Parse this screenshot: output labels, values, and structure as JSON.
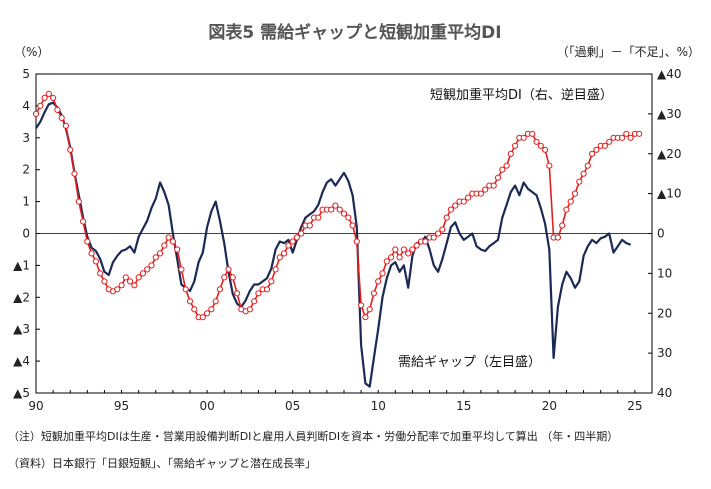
{
  "chart_data": {
    "type": "line",
    "title": "図表5 需給ギャップと短観加重平均DI",
    "left_unit": "（%）",
    "right_unit": "（「過剰」－「不足」、%）",
    "x_tick_labels": [
      "90",
      "95",
      "00",
      "05",
      "10",
      "15",
      "20",
      "25"
    ],
    "x_tick_years": [
      1990,
      1995,
      2000,
      2005,
      2010,
      2015,
      2020,
      2025
    ],
    "x_range": [
      1990,
      2026
    ],
    "left_axis": {
      "ylim": [
        -5,
        5
      ],
      "ticks": [
        5,
        4,
        3,
        2,
        1,
        0,
        -1,
        -2,
        -3,
        -4,
        -5
      ],
      "tick_labels": [
        "5",
        "4",
        "3",
        "2",
        "1",
        "0",
        "▲1",
        "▲2",
        "▲3",
        "▲4",
        "▲5"
      ]
    },
    "right_axis": {
      "ylim": [
        40,
        -40
      ],
      "inverted": true,
      "ticks": [
        -40,
        -30,
        -20,
        -10,
        0,
        10,
        20,
        30,
        40
      ],
      "tick_labels": [
        "▲40",
        "▲30",
        "▲20",
        "▲10",
        "0",
        "10",
        "20",
        "30",
        "40"
      ]
    },
    "grid": false,
    "series": [
      {
        "name": "需給ギャップ（左目盛）",
        "axis": "left",
        "color": "#1b2a55",
        "marker": "none",
        "points": [
          [
            1990.0,
            3.3
          ],
          [
            1990.25,
            3.5
          ],
          [
            1990.5,
            3.8
          ],
          [
            1990.75,
            4.05
          ],
          [
            1991.0,
            4.1
          ],
          [
            1991.25,
            3.95
          ],
          [
            1991.5,
            3.7
          ],
          [
            1991.75,
            3.3
          ],
          [
            1992.0,
            2.7
          ],
          [
            1992.25,
            1.9
          ],
          [
            1992.5,
            1.2
          ],
          [
            1992.75,
            0.5
          ],
          [
            1993.0,
            -0.1
          ],
          [
            1993.25,
            -0.45
          ],
          [
            1993.5,
            -0.55
          ],
          [
            1993.75,
            -0.8
          ],
          [
            1994.0,
            -1.2
          ],
          [
            1994.25,
            -1.3
          ],
          [
            1994.5,
            -0.9
          ],
          [
            1994.75,
            -0.7
          ],
          [
            1995.0,
            -0.55
          ],
          [
            1995.25,
            -0.5
          ],
          [
            1995.5,
            -0.4
          ],
          [
            1995.75,
            -0.6
          ],
          [
            1996.0,
            -0.1
          ],
          [
            1996.25,
            0.15
          ],
          [
            1996.5,
            0.4
          ],
          [
            1996.75,
            0.8
          ],
          [
            1997.0,
            1.1
          ],
          [
            1997.25,
            1.6
          ],
          [
            1997.5,
            1.3
          ],
          [
            1997.75,
            0.9
          ],
          [
            1998.0,
            0.0
          ],
          [
            1998.25,
            -0.8
          ],
          [
            1998.5,
            -1.6
          ],
          [
            1998.75,
            -1.7
          ],
          [
            1999.0,
            -1.8
          ],
          [
            1999.25,
            -1.5
          ],
          [
            1999.5,
            -0.9
          ],
          [
            1999.75,
            -0.6
          ],
          [
            2000.0,
            0.2
          ],
          [
            2000.25,
            0.7
          ],
          [
            2000.5,
            1.0
          ],
          [
            2000.75,
            0.4
          ],
          [
            2001.0,
            -0.3
          ],
          [
            2001.25,
            -1.2
          ],
          [
            2001.5,
            -1.9
          ],
          [
            2001.75,
            -2.2
          ],
          [
            2002.0,
            -2.3
          ],
          [
            2002.25,
            -2.1
          ],
          [
            2002.5,
            -1.8
          ],
          [
            2002.75,
            -1.6
          ],
          [
            2003.0,
            -1.6
          ],
          [
            2003.25,
            -1.5
          ],
          [
            2003.5,
            -1.4
          ],
          [
            2003.75,
            -1.1
          ],
          [
            2004.0,
            -0.5
          ],
          [
            2004.25,
            -0.25
          ],
          [
            2004.5,
            -0.3
          ],
          [
            2004.75,
            -0.2
          ],
          [
            2005.0,
            -0.6
          ],
          [
            2005.25,
            -0.2
          ],
          [
            2005.5,
            0.2
          ],
          [
            2005.75,
            0.5
          ],
          [
            2006.0,
            0.6
          ],
          [
            2006.25,
            0.7
          ],
          [
            2006.5,
            0.9
          ],
          [
            2006.75,
            1.3
          ],
          [
            2007.0,
            1.6
          ],
          [
            2007.25,
            1.7
          ],
          [
            2007.5,
            1.5
          ],
          [
            2007.75,
            1.7
          ],
          [
            2008.0,
            1.9
          ],
          [
            2008.25,
            1.65
          ],
          [
            2008.5,
            1.2
          ],
          [
            2008.75,
            0.2
          ],
          [
            2009.0,
            -3.5
          ],
          [
            2009.25,
            -4.7
          ],
          [
            2009.5,
            -4.8
          ],
          [
            2009.75,
            -3.9
          ],
          [
            2010.0,
            -3.0
          ],
          [
            2010.25,
            -2.0
          ],
          [
            2010.5,
            -1.4
          ],
          [
            2010.75,
            -1.0
          ],
          [
            2011.0,
            -0.9
          ],
          [
            2011.25,
            -1.2
          ],
          [
            2011.5,
            -1.0
          ],
          [
            2011.75,
            -1.7
          ],
          [
            2012.0,
            -0.7
          ],
          [
            2012.25,
            -0.3
          ],
          [
            2012.5,
            -0.3
          ],
          [
            2012.75,
            -0.1
          ],
          [
            2013.0,
            -0.5
          ],
          [
            2013.25,
            -1.0
          ],
          [
            2013.5,
            -1.2
          ],
          [
            2013.75,
            -0.8
          ],
          [
            2014.0,
            -0.3
          ],
          [
            2014.25,
            0.2
          ],
          [
            2014.5,
            0.35
          ],
          [
            2014.75,
            0.0
          ],
          [
            2015.0,
            -0.2
          ],
          [
            2015.25,
            -0.1
          ],
          [
            2015.5,
            0.0
          ],
          [
            2015.75,
            -0.4
          ],
          [
            2016.0,
            -0.5
          ],
          [
            2016.25,
            -0.55
          ],
          [
            2016.5,
            -0.4
          ],
          [
            2016.75,
            -0.3
          ],
          [
            2017.0,
            -0.2
          ],
          [
            2017.25,
            0.5
          ],
          [
            2017.5,
            0.9
          ],
          [
            2017.75,
            1.3
          ],
          [
            2018.0,
            1.5
          ],
          [
            2018.25,
            1.2
          ],
          [
            2018.5,
            1.6
          ],
          [
            2018.75,
            1.4
          ],
          [
            2019.0,
            1.3
          ],
          [
            2019.25,
            1.2
          ],
          [
            2019.5,
            0.8
          ],
          [
            2019.75,
            0.3
          ],
          [
            2020.0,
            -0.5
          ],
          [
            2020.25,
            -3.9
          ],
          [
            2020.5,
            -2.3
          ],
          [
            2020.75,
            -1.6
          ],
          [
            2021.0,
            -1.2
          ],
          [
            2021.25,
            -1.4
          ],
          [
            2021.5,
            -1.7
          ],
          [
            2021.75,
            -1.5
          ],
          [
            2022.0,
            -0.7
          ],
          [
            2022.25,
            -0.4
          ],
          [
            2022.5,
            -0.2
          ],
          [
            2022.75,
            -0.3
          ],
          [
            2023.0,
            -0.15
          ],
          [
            2023.25,
            -0.1
          ],
          [
            2023.5,
            0.0
          ],
          [
            2023.75,
            -0.6
          ],
          [
            2024.0,
            -0.4
          ],
          [
            2024.25,
            -0.2
          ],
          [
            2024.5,
            -0.3
          ],
          [
            2024.75,
            -0.35
          ]
        ]
      },
      {
        "name": "短観加重平均DI（右、逆目盛）",
        "axis": "right",
        "color": "#e02020",
        "marker": "circle",
        "points": [
          [
            1990.0,
            -30
          ],
          [
            1990.25,
            -32
          ],
          [
            1990.5,
            -34
          ],
          [
            1990.75,
            -35
          ],
          [
            1991.0,
            -34
          ],
          [
            1991.25,
            -31
          ],
          [
            1991.5,
            -29
          ],
          [
            1991.75,
            -27
          ],
          [
            1992.0,
            -21
          ],
          [
            1992.25,
            -15
          ],
          [
            1992.5,
            -8
          ],
          [
            1992.75,
            -3
          ],
          [
            1993.0,
            2
          ],
          [
            1993.25,
            5
          ],
          [
            1993.5,
            7
          ],
          [
            1993.75,
            10
          ],
          [
            1994.0,
            12
          ],
          [
            1994.25,
            14
          ],
          [
            1994.5,
            14.5
          ],
          [
            1994.75,
            14
          ],
          [
            1995.0,
            13
          ],
          [
            1995.25,
            11
          ],
          [
            1995.5,
            12
          ],
          [
            1995.75,
            13
          ],
          [
            1996.0,
            11
          ],
          [
            1996.25,
            10
          ],
          [
            1996.5,
            9
          ],
          [
            1996.75,
            8
          ],
          [
            1997.0,
            6
          ],
          [
            1997.25,
            5
          ],
          [
            1997.5,
            3
          ],
          [
            1997.75,
            1
          ],
          [
            1998.0,
            2
          ],
          [
            1998.25,
            4
          ],
          [
            1998.5,
            9
          ],
          [
            1998.75,
            14
          ],
          [
            1999.0,
            17
          ],
          [
            1999.25,
            19
          ],
          [
            1999.5,
            21
          ],
          [
            1999.75,
            21
          ],
          [
            2000.0,
            20
          ],
          [
            2000.25,
            19
          ],
          [
            2000.5,
            17
          ],
          [
            2000.75,
            14
          ],
          [
            2001.0,
            11
          ],
          [
            2001.25,
            9
          ],
          [
            2001.5,
            11
          ],
          [
            2001.75,
            15
          ],
          [
            2002.0,
            19
          ],
          [
            2002.25,
            19.5
          ],
          [
            2002.5,
            19
          ],
          [
            2002.75,
            17
          ],
          [
            2003.0,
            15
          ],
          [
            2003.25,
            14
          ],
          [
            2003.5,
            14
          ],
          [
            2003.75,
            12
          ],
          [
            2004.0,
            9
          ],
          [
            2004.25,
            6
          ],
          [
            2004.5,
            5
          ],
          [
            2004.75,
            3
          ],
          [
            2005.0,
            2
          ],
          [
            2005.25,
            1
          ],
          [
            2005.5,
            0
          ],
          [
            2005.75,
            -2
          ],
          [
            2006.0,
            -2
          ],
          [
            2006.25,
            -4
          ],
          [
            2006.5,
            -4
          ],
          [
            2006.75,
            -6
          ],
          [
            2007.0,
            -6
          ],
          [
            2007.25,
            -6
          ],
          [
            2007.5,
            -7
          ],
          [
            2007.75,
            -6
          ],
          [
            2008.0,
            -5
          ],
          [
            2008.25,
            -4
          ],
          [
            2008.5,
            -2
          ],
          [
            2008.75,
            2
          ],
          [
            2009.0,
            18
          ],
          [
            2009.25,
            21
          ],
          [
            2009.5,
            19
          ],
          [
            2009.75,
            15
          ],
          [
            2010.0,
            12
          ],
          [
            2010.25,
            10
          ],
          [
            2010.5,
            7
          ],
          [
            2010.75,
            6
          ],
          [
            2011.0,
            4
          ],
          [
            2011.25,
            6
          ],
          [
            2011.5,
            4
          ],
          [
            2011.75,
            5
          ],
          [
            2012.0,
            4
          ],
          [
            2012.25,
            3
          ],
          [
            2012.5,
            2
          ],
          [
            2012.75,
            2
          ],
          [
            2013.0,
            1
          ],
          [
            2013.25,
            1
          ],
          [
            2013.5,
            0
          ],
          [
            2013.75,
            -1
          ],
          [
            2014.0,
            -4
          ],
          [
            2014.25,
            -6
          ],
          [
            2014.5,
            -7
          ],
          [
            2014.75,
            -8
          ],
          [
            2015.0,
            -8
          ],
          [
            2015.25,
            -9
          ],
          [
            2015.5,
            -10
          ],
          [
            2015.75,
            -10
          ],
          [
            2016.0,
            -10
          ],
          [
            2016.25,
            -11
          ],
          [
            2016.5,
            -12
          ],
          [
            2016.75,
            -12
          ],
          [
            2017.0,
            -14
          ],
          [
            2017.25,
            -16
          ],
          [
            2017.5,
            -17
          ],
          [
            2017.75,
            -20
          ],
          [
            2018.0,
            -22
          ],
          [
            2018.25,
            -24
          ],
          [
            2018.5,
            -24
          ],
          [
            2018.75,
            -25
          ],
          [
            2019.0,
            -25
          ],
          [
            2019.25,
            -23
          ],
          [
            2019.5,
            -22
          ],
          [
            2019.75,
            -21
          ],
          [
            2020.0,
            -17
          ],
          [
            2020.25,
            1
          ],
          [
            2020.5,
            1
          ],
          [
            2020.75,
            -2
          ],
          [
            2021.0,
            -6
          ],
          [
            2021.25,
            -8
          ],
          [
            2021.5,
            -10
          ],
          [
            2021.75,
            -13
          ],
          [
            2022.0,
            -15
          ],
          [
            2022.25,
            -17
          ],
          [
            2022.5,
            -20
          ],
          [
            2022.75,
            -21
          ],
          [
            2023.0,
            -22
          ],
          [
            2023.25,
            -22
          ],
          [
            2023.5,
            -23
          ],
          [
            2023.75,
            -24
          ],
          [
            2024.0,
            -24
          ],
          [
            2024.25,
            -24
          ],
          [
            2024.5,
            -25
          ],
          [
            2024.75,
            -24
          ],
          [
            2025.0,
            -25
          ],
          [
            2025.25,
            -25
          ]
        ]
      }
    ],
    "annotations": [
      "短観加重平均DI（右、逆目盛）",
      "需給ギャップ（左目盛）"
    ]
  },
  "notes": {
    "note1": "（注）短観加重平均DIは生産・営業用設備判断DIと雇用人員判断DIを資本・労働分配率で加重平均して算出 （年・四半期）",
    "note2": "（資料）日本銀行「日銀短観」、「需給ギャップと潜在成長率」"
  }
}
